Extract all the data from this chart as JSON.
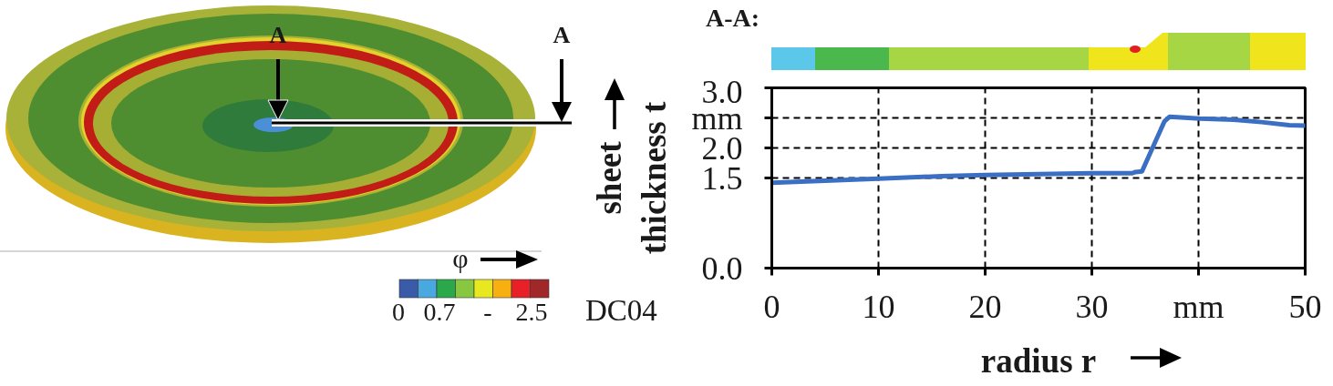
{
  "chart_data": {
    "type": "line",
    "title": "A-A:",
    "xlabel": "radius r",
    "ylabel": "sheet thickness t",
    "x": [
      0,
      10,
      15.9,
      20,
      30.1,
      33.8,
      34.1,
      34.7,
      36.8,
      37.3,
      40.1,
      43.3,
      45.9,
      48.5,
      50
    ],
    "series": [
      {
        "color": "#3b6fc3",
        "values": [
          1.42,
          1.49,
          1.53,
          1.55,
          1.58,
          1.58,
          1.6,
          1.61,
          2.44,
          2.52,
          2.49,
          2.47,
          2.43,
          2.38,
          2.37
        ]
      }
    ],
    "xlim": [
      0,
      50
    ],
    "xticks": [
      0,
      10,
      20,
      30,
      {
        "value": 40,
        "label": "mm"
      },
      50
    ],
    "ylim": [
      0,
      3.0
    ],
    "yticks": [
      {
        "value": 0,
        "label": "0.0"
      },
      1.5,
      {
        "value": 2,
        "label": "2.0"
      },
      {
        "value": 2.5,
        "label": "mm"
      },
      {
        "value": 3,
        "label": "3.0"
      }
    ],
    "grid": true,
    "line_style": "solid",
    "annotations": [
      "A",
      "A",
      "φ",
      "0 0.7 - 2.5",
      "DC04"
    ]
  }
}
